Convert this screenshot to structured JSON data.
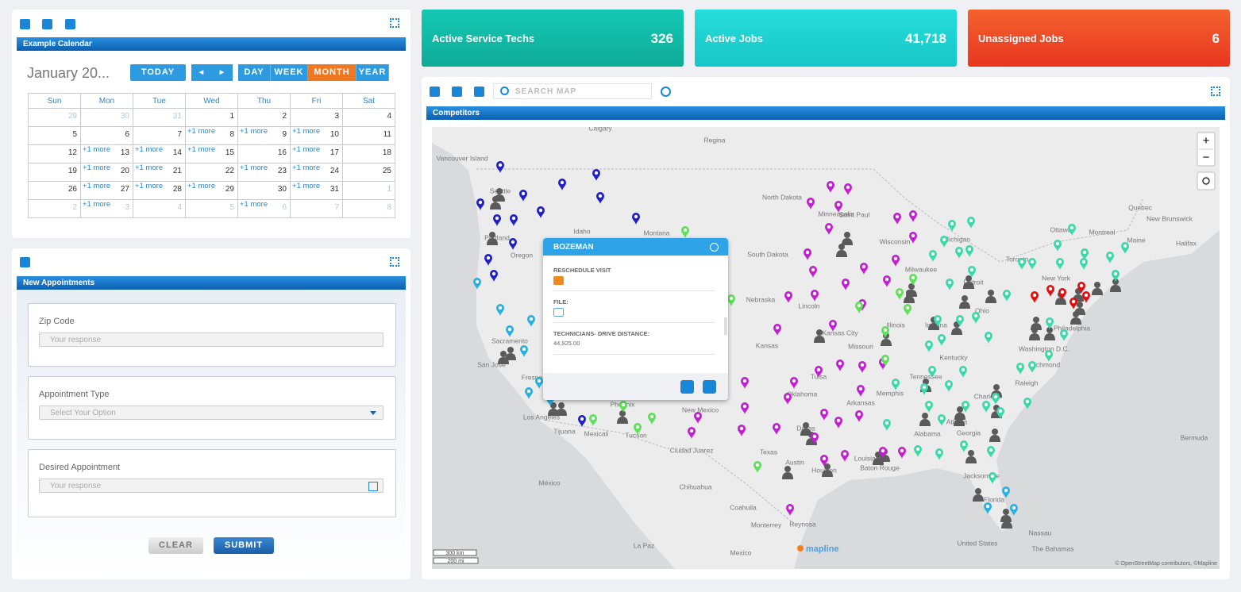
{
  "calendar": {
    "title": "Example Calendar",
    "month_label": "January 20...",
    "today": "TODAY",
    "prev": "◀",
    "next": "▶",
    "views": [
      "DAY",
      "WEEK",
      "MONTH",
      "YEAR"
    ],
    "active_view": 2,
    "weekdays": [
      "Sun",
      "Mon",
      "Tue",
      "Wed",
      "Thu",
      "Fri",
      "Sat"
    ],
    "weeks": [
      [
        {
          "day": "29",
          "muted": true
        },
        {
          "day": "30",
          "muted": true
        },
        {
          "day": "31",
          "muted": true
        },
        {
          "day": "1"
        },
        {
          "day": "2"
        },
        {
          "day": "3"
        },
        {
          "day": "4"
        }
      ],
      [
        {
          "day": "5"
        },
        {
          "day": "6"
        },
        {
          "day": "7"
        },
        {
          "day": "8",
          "more": "+1 more"
        },
        {
          "day": "9",
          "more": "+1 more"
        },
        {
          "day": "10",
          "more": "+1 more"
        },
        {
          "day": "11"
        }
      ],
      [
        {
          "day": "12"
        },
        {
          "day": "13",
          "more": "+1 more"
        },
        {
          "day": "14",
          "more": "+1 more"
        },
        {
          "day": "15",
          "more": "+1 more"
        },
        {
          "day": "16"
        },
        {
          "day": "17",
          "more": "+1 more"
        },
        {
          "day": "18"
        }
      ],
      [
        {
          "day": "19"
        },
        {
          "day": "20",
          "more": "+1 more"
        },
        {
          "day": "21",
          "more": "+1 more"
        },
        {
          "day": "22"
        },
        {
          "day": "23",
          "more": "+1 more"
        },
        {
          "day": "24",
          "more": "+1 more"
        },
        {
          "day": "25"
        }
      ],
      [
        {
          "day": "26"
        },
        {
          "day": "27",
          "more": "+1 more"
        },
        {
          "day": "28",
          "more": "+1 more"
        },
        {
          "day": "29",
          "more": "+1 more"
        },
        {
          "day": "30"
        },
        {
          "day": "31",
          "more": "+1 more"
        },
        {
          "day": "1",
          "muted": true
        }
      ],
      [
        {
          "day": "2",
          "muted": true
        },
        {
          "day": "3",
          "muted": true,
          "more": "+1 more"
        },
        {
          "day": "4",
          "muted": true
        },
        {
          "day": "5",
          "muted": true
        },
        {
          "day": "6",
          "muted": true,
          "more": "+1 more"
        },
        {
          "day": "7",
          "muted": true
        },
        {
          "day": "8",
          "muted": true
        }
      ]
    ]
  },
  "form": {
    "title": "New Appointments",
    "fields": [
      {
        "label": "Zip Code",
        "placeholder": "Your response"
      },
      {
        "label": "Appointment Type",
        "placeholder": "Select Your Option"
      },
      {
        "label": "Desired Appointment",
        "placeholder": "Your response"
      }
    ],
    "clear": "CLEAR",
    "submit": "SUBMIT"
  },
  "kpis": [
    {
      "label": "Active Service Techs",
      "value": "326"
    },
    {
      "label": "Active Jobs",
      "value": "41,718"
    },
    {
      "label": "Unassigned Jobs",
      "value": "6"
    }
  ],
  "map": {
    "search_placeholder": "SEARCH MAP",
    "title": "Competitors",
    "zoom_in": "+",
    "zoom_out": "−",
    "scale_km": "300 km",
    "scale_mi": "200 mi",
    "logo": "mapline",
    "attribution": "© OpenStreetMap contributors, ©Mapline",
    "labels": [
      "Calgary",
      "Regina",
      "Vancouver Island",
      "Seattle",
      "Portland",
      "Oregon",
      "Idaho",
      "Montana",
      "North Dakota",
      "South Dakota",
      "Nebraska",
      "Lincoln",
      "Kansas",
      "Kansas City",
      "Missouri",
      "Minneapolis",
      "Saint Paul",
      "Wisconsin",
      "Michigan",
      "Milwaukee",
      "Detroit",
      "Illinois",
      "Indiana",
      "Ohio",
      "Kentucky",
      "Tennessee",
      "Memphis",
      "Arkansas",
      "Oklahoma",
      "Tulsa",
      "Dallas",
      "Texas",
      "Austin",
      "Houston",
      "Louisiana",
      "Baton Rouge",
      "Alabama",
      "Georgia",
      "Atlanta",
      "Charlotte",
      "Raleigh",
      "Richmond",
      "Washington D.C.",
      "Philadelphia",
      "New York",
      "Toronto",
      "Ottawa",
      "Montreal",
      "Quebec",
      "New Brunswick",
      "Halifax",
      "Maine",
      "Jacksonville",
      "Florida",
      "Nassau",
      "The Bahamas",
      "Bermuda",
      "United States",
      "Sacramento",
      "San Jose",
      "Fresno",
      "Los Angeles",
      "Tijuana",
      "Mexicali",
      "Phoenix",
      "Tucson",
      "New Mexico",
      "Ciudad Juarez",
      "Chihuahua",
      "Coahuila",
      "Monterrey",
      "Reynosa",
      "México",
      "Mexico",
      "La Paz"
    ],
    "popup": {
      "title": "BOZEMAN",
      "fields": [
        {
          "label": "RESCHEDULE VISIT"
        },
        {
          "label": "FILE:"
        },
        {
          "label": "TECHNICIANS- DRIVE DISTANCE:",
          "value": "44,925.00"
        }
      ]
    }
  }
}
